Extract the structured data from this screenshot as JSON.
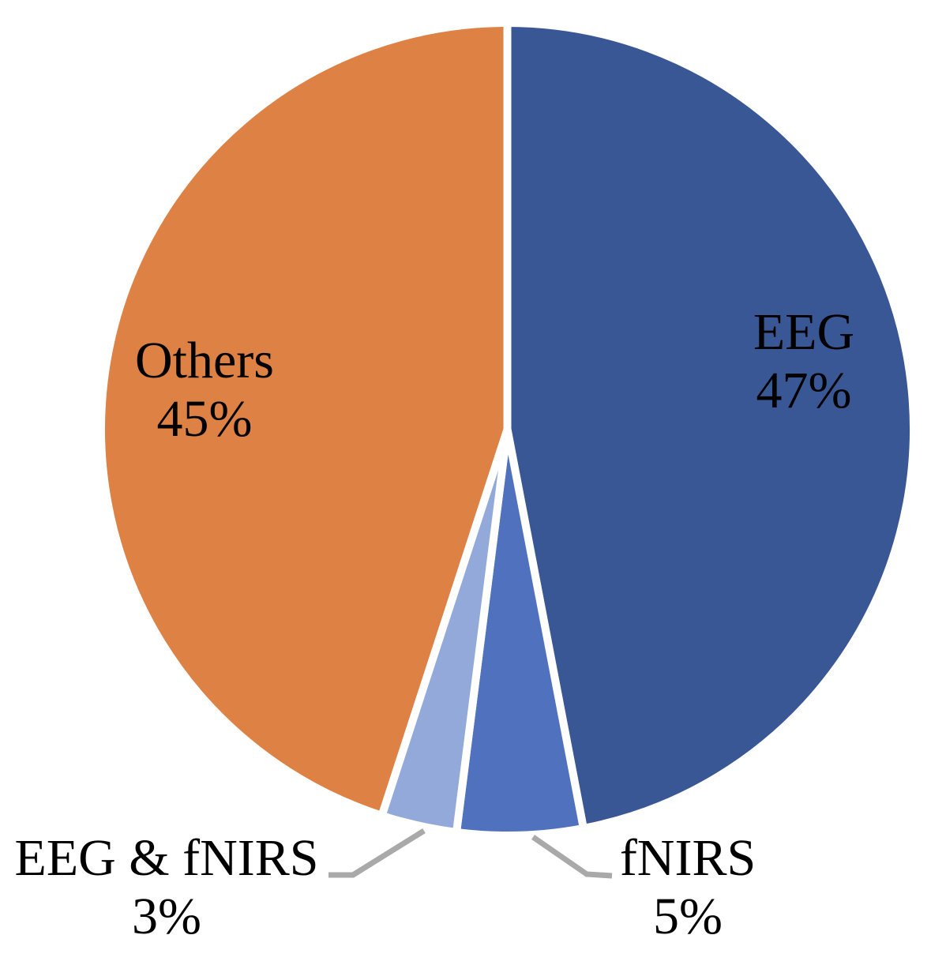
{
  "chart_data": {
    "type": "pie",
    "title": "",
    "start_angle_deg": -90,
    "direction": "clockwise",
    "border_color": "#FFFFFF",
    "leader_line_color": "#A9A9A9",
    "label_text_color": "#000000",
    "background_color": "#FFFFFF",
    "slices": [
      {
        "name": "EEG",
        "value": 47,
        "pct_label": "47%",
        "color": "#3A5795",
        "label_placement": "inside"
      },
      {
        "name": "fNIRS",
        "value": 5,
        "pct_label": "5%",
        "color": "#4F71BE",
        "label_placement": "outside-with-leader"
      },
      {
        "name": "EEG & fNIRS",
        "value": 3,
        "pct_label": "3%",
        "color": "#93A9DA",
        "label_placement": "outside-with-leader"
      },
      {
        "name": "Others",
        "value": 45,
        "pct_label": "45%",
        "color": "#DE8145",
        "label_placement": "inside"
      }
    ]
  }
}
